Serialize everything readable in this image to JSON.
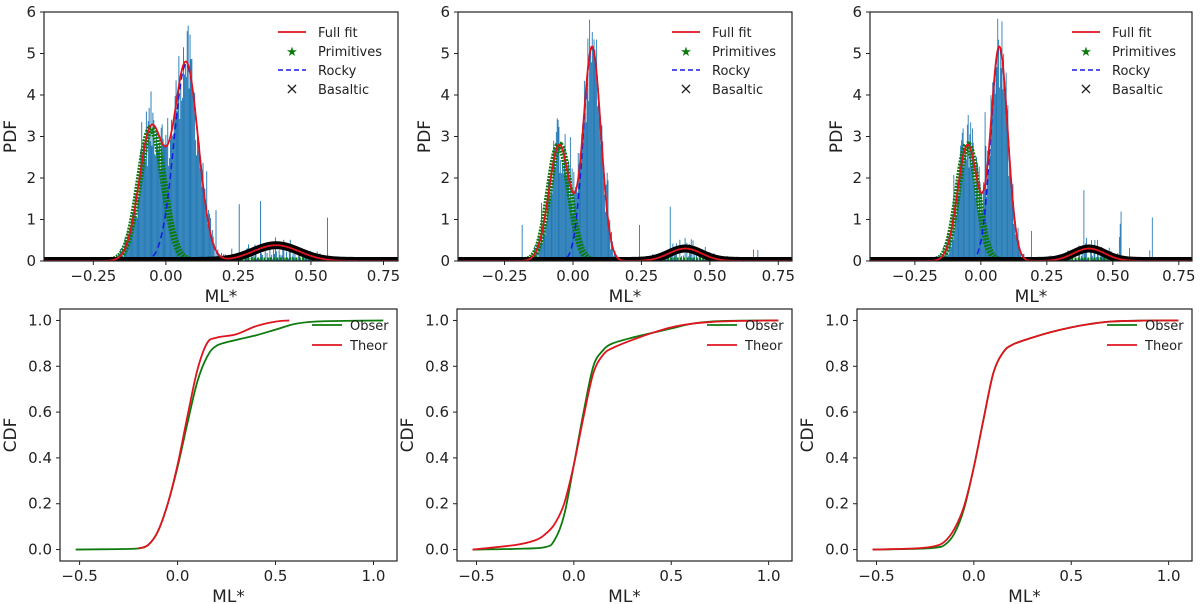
{
  "colors": {
    "hist": "#1f77b4",
    "full_fit": "#e0141e",
    "primitives": "#0d7a0d",
    "rocky": "#1a1ae6",
    "basaltic": "#000000",
    "obser": "#0d7a0d",
    "theor": "#e0141e"
  },
  "chart_data": [
    {
      "type": "histogram+line",
      "panel": "pdf-1",
      "xlabel": "ML*",
      "ylabel": "PDF",
      "xlim": [
        -0.42,
        0.8
      ],
      "ylim": [
        0,
        6
      ],
      "xticks": [
        -0.25,
        0.0,
        0.25,
        0.5,
        0.75
      ],
      "xtick_labels": [
        "−0.25",
        "0.00",
        "0.25",
        "0.50",
        "0.75"
      ],
      "yticks": [
        0,
        1,
        2,
        3,
        4,
        5,
        6
      ],
      "ytick_labels": [
        "0",
        "1",
        "2",
        "3",
        "4",
        "5",
        "6"
      ],
      "legend": [
        "Full fit",
        "Primitives",
        "Rocky",
        "Basaltic"
      ],
      "components": [
        {
          "name": "Primitives",
          "mu": -0.05,
          "sigma": 0.042,
          "amp": 3.2
        },
        {
          "name": "Rocky",
          "mu": 0.07,
          "sigma": 0.042,
          "amp": 4.75
        },
        {
          "name": "Basaltic",
          "mu": 0.38,
          "sigma": 0.08,
          "amp": 0.38
        }
      ],
      "hist_range": [
        -0.2,
        0.7
      ]
    },
    {
      "type": "histogram+line",
      "panel": "pdf-2",
      "xlabel": "ML*",
      "ylabel": "PDF",
      "xlim": [
        -0.42,
        0.8
      ],
      "ylim": [
        0,
        6
      ],
      "xticks": [
        -0.25,
        0.0,
        0.25,
        0.5,
        0.75
      ],
      "xtick_labels": [
        "−0.25",
        "0.00",
        "0.25",
        "0.50",
        "0.75"
      ],
      "yticks": [
        0,
        1,
        2,
        3,
        4,
        5,
        6
      ],
      "ytick_labels": [
        "0",
        "1",
        "2",
        "3",
        "4",
        "5",
        "6"
      ],
      "legend": [
        "Full fit",
        "Primitives",
        "Rocky",
        "Basaltic"
      ],
      "components": [
        {
          "name": "Primitives",
          "mu": -0.05,
          "sigma": 0.038,
          "amp": 2.8
        },
        {
          "name": "Rocky",
          "mu": 0.07,
          "sigma": 0.032,
          "amp": 5.15
        },
        {
          "name": "Basaltic",
          "mu": 0.41,
          "sigma": 0.06,
          "amp": 0.3
        }
      ],
      "hist_range": [
        -0.2,
        0.7
      ]
    },
    {
      "type": "histogram+line",
      "panel": "pdf-3",
      "xlabel": "ML*",
      "ylabel": "PDF",
      "xlim": [
        -0.42,
        0.8
      ],
      "ylim": [
        0,
        6
      ],
      "xticks": [
        -0.25,
        0.0,
        0.25,
        0.5,
        0.75
      ],
      "xtick_labels": [
        "−0.25",
        "0.00",
        "0.25",
        "0.50",
        "0.75"
      ],
      "yticks": [
        0,
        1,
        2,
        3,
        4,
        5,
        6
      ],
      "ytick_labels": [
        "0",
        "1",
        "2",
        "3",
        "4",
        "5",
        "6"
      ],
      "legend": [
        "Full fit",
        "Primitives",
        "Rocky",
        "Basaltic"
      ],
      "components": [
        {
          "name": "Primitives",
          "mu": -0.05,
          "sigma": 0.038,
          "amp": 2.8
        },
        {
          "name": "Rocky",
          "mu": 0.07,
          "sigma": 0.032,
          "amp": 5.15
        },
        {
          "name": "Basaltic",
          "mu": 0.41,
          "sigma": 0.06,
          "amp": 0.3
        }
      ],
      "hist_range": [
        -0.2,
        0.7
      ]
    },
    {
      "type": "line",
      "panel": "cdf-1",
      "xlabel": "ML*",
      "ylabel": "CDF",
      "xlim": [
        -0.6,
        1.12
      ],
      "ylim": [
        -0.05,
        1.05
      ],
      "xticks": [
        -0.5,
        0.0,
        0.5,
        1.0
      ],
      "xtick_labels": [
        "−0.5",
        "0.0",
        "0.5",
        "1.0"
      ],
      "yticks": [
        0.0,
        0.2,
        0.4,
        0.6,
        0.8,
        1.0
      ],
      "ytick_labels": [
        "0.0",
        "0.2",
        "0.4",
        "0.6",
        "0.8",
        "1.0"
      ],
      "legend": [
        "Obser",
        "Theor"
      ],
      "series": [
        {
          "name": "Obser",
          "x": [
            -0.52,
            -0.3,
            -0.2,
            -0.15,
            -0.1,
            -0.05,
            0.0,
            0.05,
            0.1,
            0.15,
            0.2,
            0.3,
            0.4,
            0.5,
            0.6,
            0.7,
            0.85,
            1.05
          ],
          "y": [
            0.0,
            0.002,
            0.005,
            0.02,
            0.08,
            0.2,
            0.36,
            0.55,
            0.73,
            0.84,
            0.89,
            0.915,
            0.935,
            0.96,
            0.985,
            0.995,
            0.998,
            1.0
          ]
        },
        {
          "name": "Theor",
          "x": [
            -0.2,
            -0.15,
            -0.1,
            -0.05,
            0.0,
            0.05,
            0.1,
            0.15,
            0.2,
            0.3,
            0.4,
            0.5,
            0.57
          ],
          "y": [
            0.005,
            0.02,
            0.08,
            0.2,
            0.37,
            0.58,
            0.78,
            0.9,
            0.925,
            0.94,
            0.975,
            0.995,
            1.0
          ]
        }
      ]
    },
    {
      "type": "line",
      "panel": "cdf-2",
      "xlabel": "ML*",
      "ylabel": "CDF",
      "xlim": [
        -0.6,
        1.12
      ],
      "ylim": [
        -0.05,
        1.05
      ],
      "xticks": [
        -0.5,
        0.0,
        0.5,
        1.0
      ],
      "xtick_labels": [
        "−0.5",
        "0.0",
        "0.5",
        "1.0"
      ],
      "yticks": [
        0.0,
        0.2,
        0.4,
        0.6,
        0.8,
        1.0
      ],
      "ytick_labels": [
        "0.0",
        "0.2",
        "0.4",
        "0.6",
        "0.8",
        "1.0"
      ],
      "legend": [
        "Obser",
        "Theor"
      ],
      "series": [
        {
          "name": "Obser",
          "x": [
            -0.52,
            -0.3,
            -0.15,
            -0.1,
            -0.05,
            0.0,
            0.05,
            0.1,
            0.15,
            0.2,
            0.3,
            0.4,
            0.5,
            0.6,
            0.7,
            0.85,
            1.05
          ],
          "y": [
            0.0,
            0.003,
            0.01,
            0.04,
            0.15,
            0.37,
            0.6,
            0.8,
            0.87,
            0.9,
            0.925,
            0.945,
            0.965,
            0.985,
            0.995,
            0.999,
            1.0
          ]
        },
        {
          "name": "Theor",
          "x": [
            -0.52,
            -0.3,
            -0.2,
            -0.15,
            -0.1,
            -0.05,
            0.0,
            0.05,
            0.1,
            0.15,
            0.2,
            0.3,
            0.4,
            0.5,
            0.6,
            0.7,
            0.85,
            1.05
          ],
          "y": [
            0.0,
            0.02,
            0.04,
            0.065,
            0.11,
            0.2,
            0.37,
            0.58,
            0.77,
            0.85,
            0.88,
            0.915,
            0.945,
            0.97,
            0.985,
            0.993,
            0.998,
            1.0
          ]
        }
      ]
    },
    {
      "type": "line",
      "panel": "cdf-3",
      "xlabel": "ML*",
      "ylabel": "CDF",
      "xlim": [
        -0.6,
        1.12
      ],
      "ylim": [
        -0.05,
        1.05
      ],
      "xticks": [
        -0.5,
        0.0,
        0.5,
        1.0
      ],
      "xtick_labels": [
        "−0.5",
        "0.0",
        "0.5",
        "1.0"
      ],
      "yticks": [
        0.0,
        0.2,
        0.4,
        0.6,
        0.8,
        1.0
      ],
      "ytick_labels": [
        "0.0",
        "0.2",
        "0.4",
        "0.6",
        "0.8",
        "1.0"
      ],
      "legend": [
        "Obser",
        "Theor"
      ],
      "series": [
        {
          "name": "Obser",
          "x": [
            -0.52,
            -0.3,
            -0.2,
            -0.15,
            -0.1,
            -0.05,
            0.0,
            0.05,
            0.1,
            0.15,
            0.2,
            0.3,
            0.4,
            0.5,
            0.6,
            0.7,
            0.85,
            1.05
          ],
          "y": [
            0.0,
            0.003,
            0.008,
            0.02,
            0.07,
            0.18,
            0.36,
            0.57,
            0.77,
            0.86,
            0.895,
            0.925,
            0.95,
            0.97,
            0.985,
            0.995,
            0.999,
            1.0
          ]
        },
        {
          "name": "Theor",
          "x": [
            -0.52,
            -0.3,
            -0.2,
            -0.15,
            -0.1,
            -0.05,
            0.0,
            0.05,
            0.1,
            0.15,
            0.2,
            0.3,
            0.4,
            0.5,
            0.6,
            0.7,
            0.85,
            1.05
          ],
          "y": [
            0.0,
            0.005,
            0.015,
            0.035,
            0.09,
            0.19,
            0.36,
            0.57,
            0.77,
            0.86,
            0.895,
            0.925,
            0.95,
            0.97,
            0.985,
            0.995,
            0.999,
            1.0
          ]
        }
      ]
    }
  ]
}
